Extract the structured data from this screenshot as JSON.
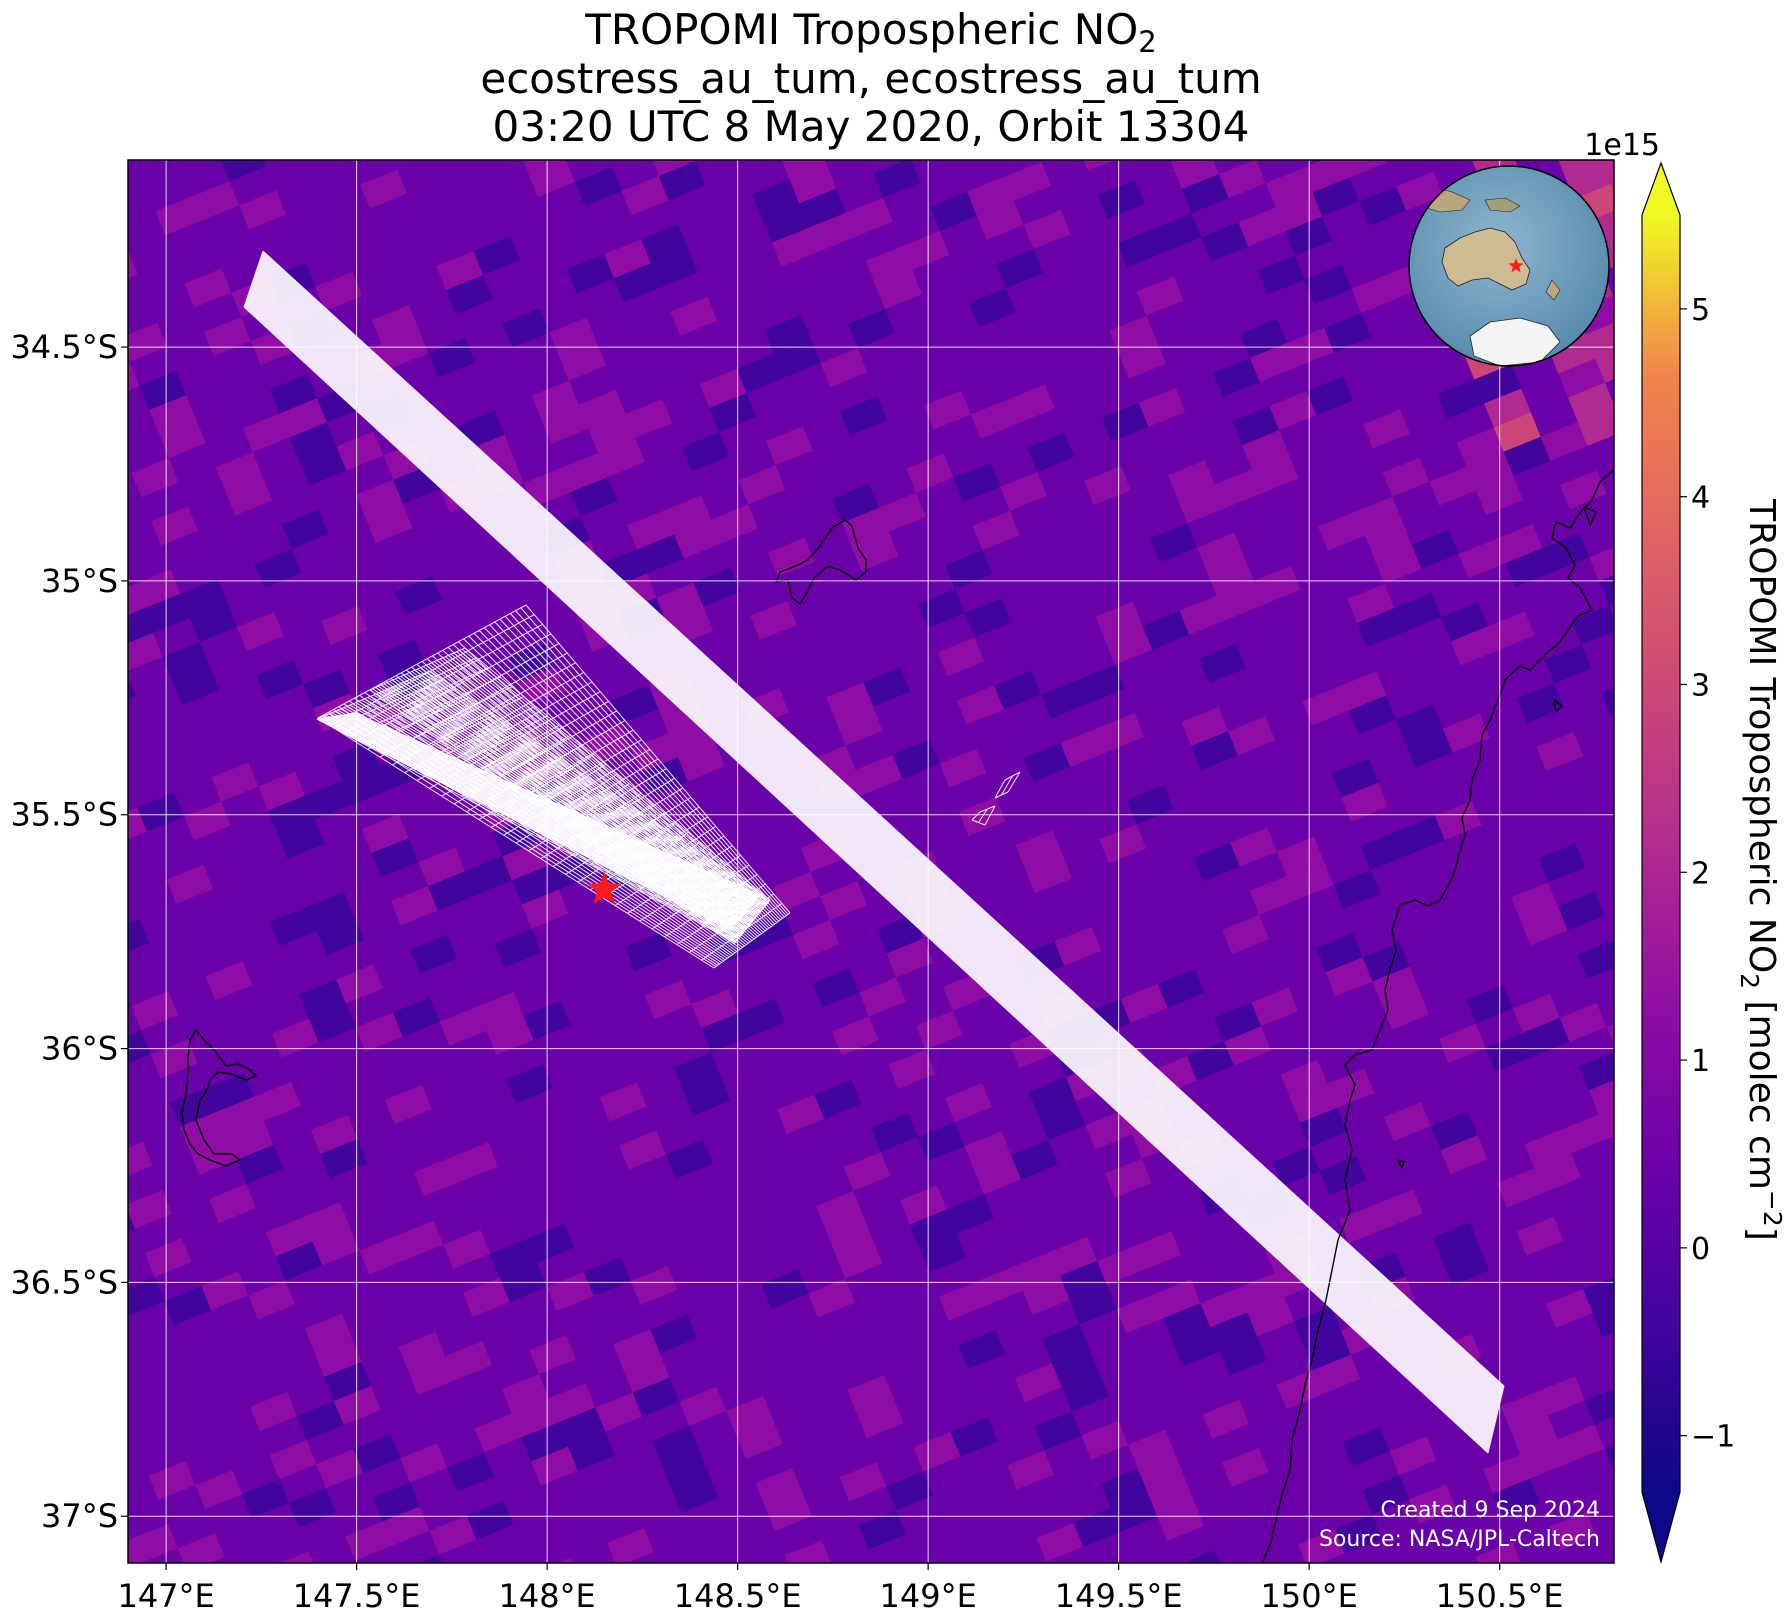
{
  "title": {
    "line1_main": "TROPOMI Tropospheric NO",
    "line1_sub": "2",
    "line2": "ecostress_au_tum, ecostress_au_tum",
    "line3": "03:20 UTC 8 May 2020, Orbit 13304"
  },
  "map": {
    "lon_range": [
      146.9,
      150.8
    ],
    "lat_range": [
      -37.1,
      -34.1
    ],
    "lon_ticks": [
      {
        "value": 147.0,
        "label": "147°E"
      },
      {
        "value": 147.5,
        "label": "147.5°E"
      },
      {
        "value": 148.0,
        "label": "148°E"
      },
      {
        "value": 148.5,
        "label": "148.5°E"
      },
      {
        "value": 149.0,
        "label": "149°E"
      },
      {
        "value": 149.5,
        "label": "149.5°E"
      },
      {
        "value": 150.0,
        "label": "150°E"
      },
      {
        "value": 150.5,
        "label": "150.5°E"
      }
    ],
    "lat_ticks": [
      {
        "value": -34.5,
        "label": "34.5°S"
      },
      {
        "value": -35.0,
        "label": "35°S"
      },
      {
        "value": -35.5,
        "label": "35.5°S"
      },
      {
        "value": -36.0,
        "label": "36°S"
      },
      {
        "value": -36.5,
        "label": "36.5°S"
      },
      {
        "value": -37.0,
        "label": "37°S"
      }
    ],
    "grid": true,
    "site_marker": {
      "lon": 148.15,
      "lat": -35.66,
      "color": "#ff1a1a",
      "shape": "star"
    },
    "credits": [
      "Created 9 Sep 2024",
      "Source: NASA/JPL-Caltech"
    ]
  },
  "colorbar": {
    "label_main": "TROPOMI Tropospheric NO",
    "label_sub": "2",
    "label_unit": " [molec cm",
    "label_exp": "−2",
    "label_close": "]",
    "multiplier": "1e15",
    "range": [
      -1.3,
      5.5
    ],
    "ticks": [
      {
        "value": -1,
        "label": "−1"
      },
      {
        "value": 0,
        "label": "0"
      },
      {
        "value": 1,
        "label": "1"
      },
      {
        "value": 2,
        "label": "2"
      },
      {
        "value": 3,
        "label": "3"
      },
      {
        "value": 4,
        "label": "4"
      },
      {
        "value": 5,
        "label": "5"
      }
    ],
    "colormap": "plasma",
    "extend": "both"
  },
  "colors": {
    "field_base": "#7a12a5",
    "swath_outline": "#ffffff",
    "coastline": "#000000",
    "gridline": "#ffffff"
  }
}
